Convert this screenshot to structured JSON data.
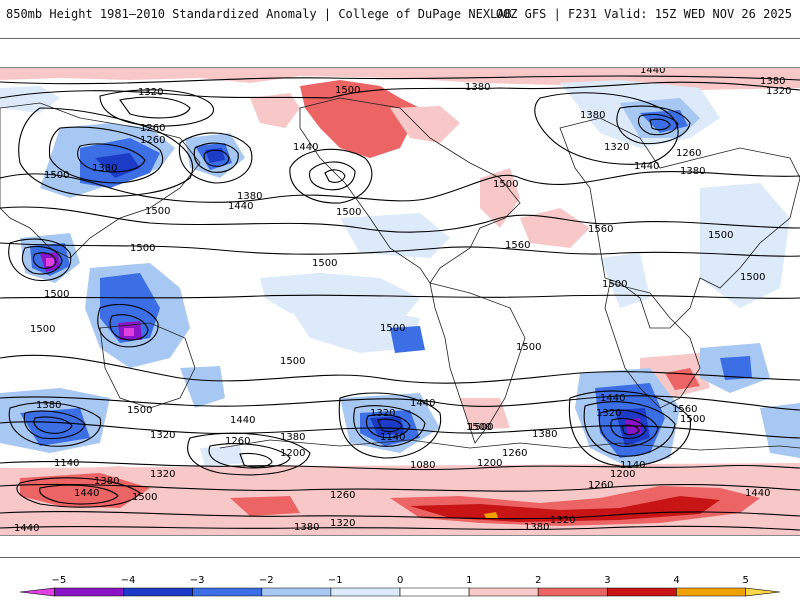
{
  "header": {
    "title": "850mb Height 1981–2010 Standardized Anomaly | College of DuPage NEXLAB",
    "run_info": "00Z GFS | F231 Valid: 15Z WED NOV 26 2025"
  },
  "colorbar": {
    "ticks": [
      {
        "label": "−5",
        "value": -5
      },
      {
        "label": "−4",
        "value": -4
      },
      {
        "label": "−3",
        "value": -3
      },
      {
        "label": "−2",
        "value": -2
      },
      {
        "label": "−1",
        "value": -1
      },
      {
        "label": "0",
        "value": 0
      },
      {
        "label": "1",
        "value": 1
      },
      {
        "label": "2",
        "value": 2
      },
      {
        "label": "3",
        "value": 3
      },
      {
        "label": "4",
        "value": 4
      },
      {
        "label": "5",
        "value": 5
      }
    ],
    "bins": [
      {
        "from": -5.5,
        "to": -5,
        "color": "#e040e0"
      },
      {
        "from": -5,
        "to": -4,
        "color": "#8a14c8"
      },
      {
        "from": -4,
        "to": -3,
        "color": "#1c3cc8"
      },
      {
        "from": -3,
        "to": -2,
        "color": "#3c6ee6"
      },
      {
        "from": -2,
        "to": -1,
        "color": "#a8c8f4"
      },
      {
        "from": -1,
        "to": 0,
        "color": "#dceafa"
      },
      {
        "from": 0,
        "to": 1,
        "color": "#ffffff"
      },
      {
        "from": 1,
        "to": 2,
        "color": "#f8c8c8"
      },
      {
        "from": 2,
        "to": 3,
        "color": "#ec6464"
      },
      {
        "from": 3,
        "to": 4,
        "color": "#c81414"
      },
      {
        "from": 4,
        "to": 5,
        "color": "#f0a000"
      },
      {
        "from": 5,
        "to": 5.5,
        "color": "#f8d84a"
      }
    ]
  },
  "contour_labels": [
    {
      "text": "1440"
    },
    {
      "text": "1380"
    },
    {
      "text": "1320"
    },
    {
      "text": "1500"
    },
    {
      "text": "1380"
    },
    {
      "text": "1320"
    },
    {
      "text": "1260"
    },
    {
      "text": "1260"
    },
    {
      "text": "1380"
    },
    {
      "text": "1500"
    },
    {
      "text": "1380"
    },
    {
      "text": "1500"
    },
    {
      "text": "1440"
    },
    {
      "text": "1440"
    },
    {
      "text": "1500"
    },
    {
      "text": "1500"
    },
    {
      "text": "1380"
    },
    {
      "text": "1320"
    },
    {
      "text": "1260"
    },
    {
      "text": "1440"
    },
    {
      "text": "1380"
    },
    {
      "text": "1500"
    },
    {
      "text": "1560"
    },
    {
      "text": "1560"
    },
    {
      "text": "1500"
    },
    {
      "text": "1500"
    },
    {
      "text": "1500"
    },
    {
      "text": "1500"
    },
    {
      "text": "1500"
    },
    {
      "text": "1500"
    },
    {
      "text": "1500"
    },
    {
      "text": "1500"
    },
    {
      "text": "1500"
    },
    {
      "text": "1500"
    },
    {
      "text": "1380"
    },
    {
      "text": "1500"
    },
    {
      "text": "1440"
    },
    {
      "text": "1320"
    },
    {
      "text": "1140"
    },
    {
      "text": "1260"
    },
    {
      "text": "1200"
    },
    {
      "text": "1380"
    },
    {
      "text": "1320"
    },
    {
      "text": "1440"
    },
    {
      "text": "1140"
    },
    {
      "text": "1080"
    },
    {
      "text": "1200"
    },
    {
      "text": "1260"
    },
    {
      "text": "1500"
    },
    {
      "text": "1380"
    },
    {
      "text": "1440"
    },
    {
      "text": "1320"
    },
    {
      "text": "1140"
    },
    {
      "text": "1200"
    },
    {
      "text": "1260"
    },
    {
      "text": "1500"
    },
    {
      "text": "1560"
    },
    {
      "text": "1320"
    },
    {
      "text": "1380"
    },
    {
      "text": "1440"
    },
    {
      "text": "1500"
    },
    {
      "text": "1260"
    },
    {
      "text": "1320"
    },
    {
      "text": "1380"
    },
    {
      "text": "1320"
    },
    {
      "text": "1380"
    },
    {
      "text": "1440"
    },
    {
      "text": "1440"
    }
  ]
}
